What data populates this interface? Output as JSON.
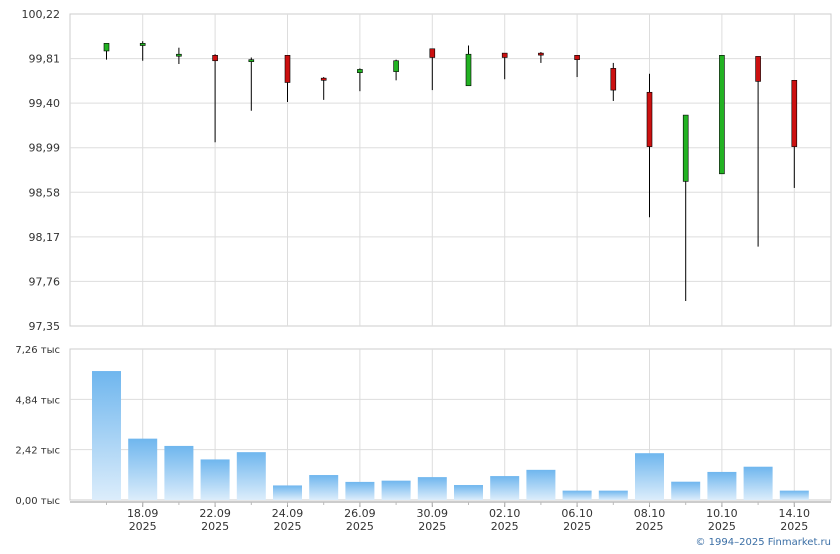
{
  "copyright": "© 1994–2025 Finmarket.ru",
  "chart_data": [
    {
      "type": "candlestick",
      "y_ticks": [
        "100,22",
        "99,81",
        "99,40",
        "98,99",
        "98,58",
        "98,17",
        "97,76",
        "97,35"
      ],
      "y_tick_values": [
        100.22,
        99.81,
        99.4,
        98.99,
        98.58,
        98.17,
        97.76,
        97.35
      ],
      "ylim": [
        97.35,
        100.22
      ],
      "grid": true,
      "colors": {
        "up": "#22b222",
        "down": "#cc1010",
        "wick": "#000000"
      },
      "candles": [
        {
          "o": 99.88,
          "h": 99.95,
          "l": 99.8,
          "c": 99.95
        },
        {
          "o": 99.93,
          "h": 99.97,
          "l": 99.79,
          "c": 99.95
        },
        {
          "o": 99.85,
          "h": 99.91,
          "l": 99.76,
          "c": 99.85
        },
        {
          "o": 99.84,
          "h": 99.85,
          "l": 99.04,
          "c": 99.79
        },
        {
          "o": 99.79,
          "h": 99.82,
          "l": 99.33,
          "c": 99.8
        },
        {
          "o": 99.84,
          "h": 99.84,
          "l": 99.41,
          "c": 99.59
        },
        {
          "o": 99.63,
          "h": 99.64,
          "l": 99.43,
          "c": 99.61
        },
        {
          "o": 99.68,
          "h": 99.72,
          "l": 99.51,
          "c": 99.71
        },
        {
          "o": 99.69,
          "h": 99.8,
          "l": 99.61,
          "c": 99.79
        },
        {
          "o": 99.9,
          "h": 99.9,
          "l": 99.52,
          "c": 99.82
        },
        {
          "o": 99.56,
          "h": 99.93,
          "l": 99.56,
          "c": 99.85
        },
        {
          "o": 99.86,
          "h": 99.86,
          "l": 99.62,
          "c": 99.82
        },
        {
          "o": 99.86,
          "h": 99.87,
          "l": 99.77,
          "c": 99.85
        },
        {
          "o": 99.84,
          "h": 99.84,
          "l": 99.64,
          "c": 99.8
        },
        {
          "o": 99.72,
          "h": 99.77,
          "l": 99.42,
          "c": 99.52
        },
        {
          "o": 99.5,
          "h": 99.67,
          "l": 98.35,
          "c": 99.0
        },
        {
          "o": 98.68,
          "h": 99.29,
          "l": 97.58,
          "c": 99.29
        },
        {
          "o": 98.75,
          "h": 99.84,
          "l": 98.75,
          "c": 99.84
        },
        {
          "o": 99.83,
          "h": 99.83,
          "l": 98.08,
          "c": 99.6
        },
        {
          "o": 99.61,
          "h": 99.61,
          "l": 98.62,
          "c": 99.0
        }
      ]
    },
    {
      "type": "bar",
      "y_ticks": [
        "7,26 тыс",
        "4,84 тыс",
        "2,42 тыс",
        "0,00 тыс"
      ],
      "y_tick_values": [
        7.26,
        4.84,
        2.42,
        0.0
      ],
      "ylim": [
        0,
        7.26
      ],
      "grid": true,
      "colors": {
        "bar_top": "#6fb6ee",
        "bar_bottom": "#dcedfb"
      },
      "values": [
        6.2,
        2.95,
        2.6,
        1.95,
        2.3,
        0.7,
        1.2,
        0.87,
        0.93,
        1.1,
        0.72,
        1.15,
        1.45,
        0.45,
        0.45,
        2.25,
        0.88,
        1.35,
        1.6,
        0.45
      ]
    }
  ],
  "x_labels": [
    {
      "slot": 1,
      "date": "18.09",
      "year": "2025"
    },
    {
      "slot": 3,
      "date": "22.09",
      "year": "2025"
    },
    {
      "slot": 5,
      "date": "24.09",
      "year": "2025"
    },
    {
      "slot": 7,
      "date": "26.09",
      "year": "2025"
    },
    {
      "slot": 9,
      "date": "30.09",
      "year": "2025"
    },
    {
      "slot": 11,
      "date": "02.10",
      "year": "2025"
    },
    {
      "slot": 13,
      "date": "06.10",
      "year": "2025"
    },
    {
      "slot": 15,
      "date": "08.10",
      "year": "2025"
    },
    {
      "slot": 17,
      "date": "10.10",
      "year": "2025"
    },
    {
      "slot": 19,
      "date": "14.10",
      "year": "2025"
    }
  ]
}
